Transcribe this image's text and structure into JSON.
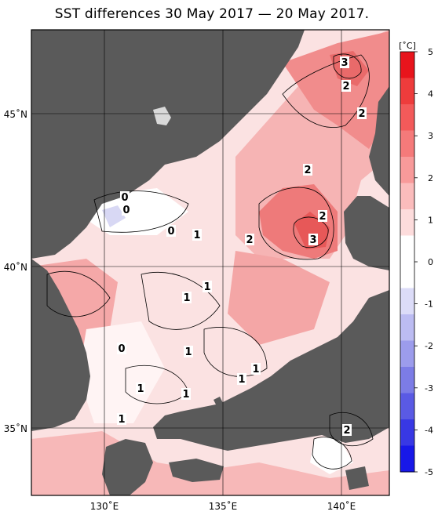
{
  "title": "SST differences 30 May 2017 — 20 May 2017.",
  "map": {
    "lat_labels": [
      "45˚N",
      "40˚N",
      "35˚N"
    ],
    "lon_labels": [
      "130˚E",
      "135˚E",
      "140˚E"
    ],
    "contour_labels": [
      "3",
      "2",
      "2",
      "2",
      "2",
      "2",
      "3",
      "2",
      "0",
      "0",
      "0",
      "1",
      "1",
      "1",
      "1",
      "0",
      "1",
      "1",
      "1",
      "1",
      "1",
      "2"
    ]
  },
  "colorbar": {
    "unit": "[˚C]",
    "ticks": [
      "5",
      "4",
      "3",
      "2",
      "1",
      "0",
      "-1",
      "-2",
      "-3",
      "-4",
      "-5"
    ],
    "colors": [
      "#e8141c",
      "#ee3c3c",
      "#f35a5a",
      "#f57a7a",
      "#f89a9a",
      "#fbbcbc",
      "#fddcdc",
      "#ffffff",
      "#ffffff",
      "#dcdcf8",
      "#bcbcf2",
      "#9c9cec",
      "#7c7ce6",
      "#5a5ae4",
      "#3838e4",
      "#1818e8"
    ]
  },
  "colors": {
    "land": "#5a5a5a",
    "grid": "#000000",
    "warm_strong": "#e05050",
    "warm_light": "#f8d0d0"
  }
}
